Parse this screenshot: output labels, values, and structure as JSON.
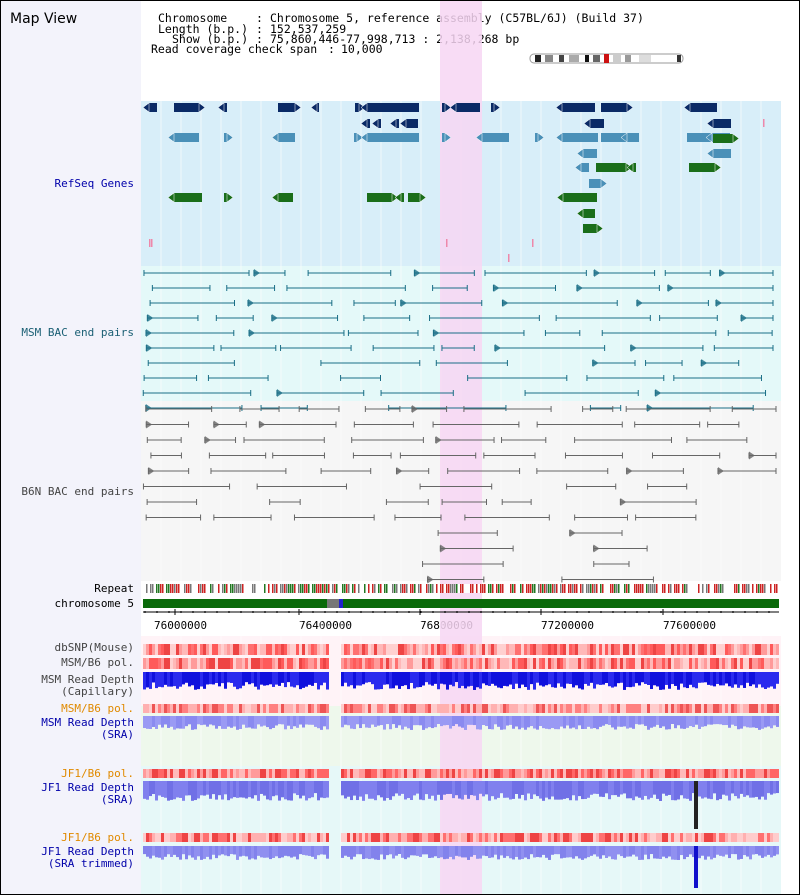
{
  "title": "Map View",
  "info": {
    "chromosome_label": "Chromosome",
    "chromosome_value": "Chromosome 5, reference assembly (C57BL/6J) (Build 37)",
    "length_label": "Length (b.p.)",
    "length_value": "152,537,259",
    "show_label": "Show (b.p.)",
    "show_value": "75,860,446-77,998,713 : 2,138,268 bp",
    "coverage_label": "Read coverage check span",
    "coverage_value": "10,000"
  },
  "tracks": {
    "refseq": "RefSeq Genes",
    "msm_bac": "MSM BAC end pairs",
    "b6n_bac": "B6N BAC end pairs",
    "repeat": "Repeat",
    "chromosome": "chromosome 5",
    "dbsnp": "dbSNP(Mouse)",
    "msm_b6_pol": "MSM/B6 pol.",
    "msm_depth_cap_1": "MSM Read Depth",
    "msm_depth_cap_2": "(Capillary)",
    "msm_b6_pol_2": "MSM/B6 pol.",
    "msm_depth_sra_1": "MSM Read Depth",
    "msm_depth_sra_2": "(SRA)",
    "jf1_pol": "JF1/B6 pol.",
    "jf1_depth_sra_1": "JF1 Read Depth",
    "jf1_depth_sra_2": "(SRA)",
    "jf1_pol_2": "JF1/B6 pol.",
    "jf1_depth_trim_1": "JF1 Read Depth",
    "jf1_depth_trim_2": "(SRA trimmed)"
  },
  "axis_ticks": [
    "76000000",
    "76400000",
    "76800000",
    "77200000",
    "77600000"
  ],
  "colors": {
    "refseq_bg": "#d8eef9",
    "msm_bg": "#e4f9f9",
    "b6n_bg": "#f6f6f6",
    "highlight": "#f7d6f3",
    "gene_dark": "#0a2a66",
    "gene_mid": "#4a90b8",
    "gene_green": "#1a6e1a",
    "msm_line": "#1a6e86",
    "b6n_line": "#666666",
    "chrom_green": "#0a6a0a",
    "depth_blue": "#1010dd",
    "depth_light": "#8a8af0",
    "pol_red": "#ee4444"
  }
}
